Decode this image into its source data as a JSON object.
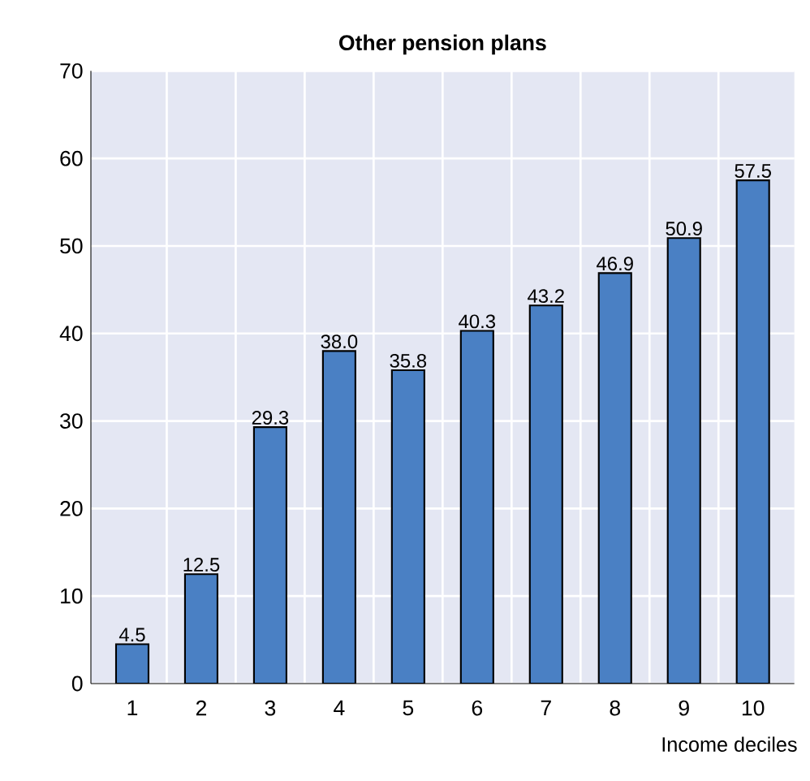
{
  "chart_data": {
    "type": "bar",
    "title": "Other pension plans",
    "xlabel": "Income deciles",
    "categories": [
      "1",
      "2",
      "3",
      "4",
      "5",
      "6",
      "7",
      "8",
      "9",
      "10"
    ],
    "values": [
      4.5,
      12.5,
      29.3,
      38.0,
      35.8,
      40.3,
      43.2,
      46.9,
      50.9,
      57.5
    ],
    "value_labels": [
      "4.5",
      "12.5",
      "29.3",
      "38.0",
      "35.8",
      "40.3",
      "43.2",
      "46.9",
      "50.9",
      "57.5"
    ],
    "color": "#4a80c4",
    "ylim": [
      0,
      70
    ],
    "yticks": [
      0,
      10,
      20,
      30,
      40,
      50,
      60,
      70
    ],
    "grid": true
  }
}
